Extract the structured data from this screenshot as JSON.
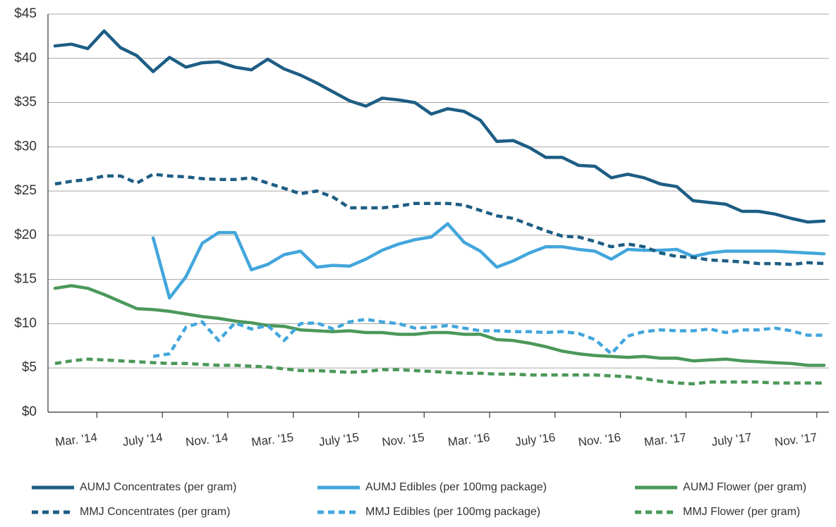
{
  "chart_data": {
    "type": "line",
    "categories": [
      null,
      null,
      "Mar. '14",
      null,
      null,
      null,
      "July '14",
      null,
      null,
      null,
      "Nov. '14",
      null,
      null,
      null,
      "Mar. '15",
      null,
      null,
      null,
      "July '15",
      null,
      null,
      null,
      "Nov. '15",
      null,
      null,
      null,
      "Mar. '16",
      null,
      null,
      null,
      "July '16",
      null,
      null,
      null,
      "Nov. '16",
      null,
      null,
      null,
      "Mar. '17",
      null,
      null,
      null,
      "July '17",
      null,
      null,
      null,
      "Nov. '17",
      null
    ],
    "ylim": [
      0,
      45
    ],
    "yticks": [
      {
        "value": 0,
        "label": "$0"
      },
      {
        "value": 5,
        "label": "$5"
      },
      {
        "value": 10,
        "label": "$10"
      },
      {
        "value": 15,
        "label": "$15"
      },
      {
        "value": 20,
        "label": "$20"
      },
      {
        "value": 25,
        "label": "$25"
      },
      {
        "value": 30,
        "label": "$30"
      },
      {
        "value": 35,
        "label": "$35"
      },
      {
        "value": 40,
        "label": "$40"
      },
      {
        "value": 45,
        "label": "$45"
      }
    ],
    "grid": true,
    "legend": "bottom",
    "series": [
      {
        "name": "AUMJ Concentrates (per gram)",
        "color": "#1d5d84",
        "style": "solid",
        "values": [
          41.4,
          41.6,
          41.1,
          43.1,
          41.2,
          40.3,
          38.5,
          40.1,
          39.0,
          39.5,
          39.6,
          39.0,
          38.7,
          39.9,
          38.8,
          38.1,
          37.2,
          36.2,
          35.2,
          34.6,
          35.5,
          35.3,
          35.0,
          33.7,
          34.3,
          34.0,
          33.0,
          30.6,
          30.7,
          29.9,
          28.8,
          28.8,
          27.9,
          27.8,
          26.5,
          26.9,
          26.5,
          25.8,
          25.5,
          23.9,
          23.7,
          23.5,
          22.7,
          22.7,
          22.4,
          21.9,
          21.5,
          21.6
        ]
      },
      {
        "name": "AUMJ Edibles (per 100mg package)",
        "color": "#42a6dc",
        "style": "solid",
        "values": [
          null,
          null,
          null,
          null,
          null,
          null,
          19.7,
          12.9,
          15.3,
          19.1,
          20.3,
          20.3,
          16.1,
          16.7,
          17.8,
          18.2,
          16.4,
          16.6,
          16.5,
          17.3,
          18.3,
          19.0,
          19.5,
          19.8,
          21.3,
          19.2,
          18.2,
          16.4,
          17.1,
          18.0,
          18.7,
          18.7,
          18.4,
          18.2,
          17.3,
          18.4,
          18.3,
          18.3,
          18.4,
          17.6,
          18.0,
          18.2,
          18.2,
          18.2,
          18.2,
          18.1,
          18.0,
          17.9
        ]
      },
      {
        "name": "AUMJ Flower (per gram)",
        "color": "#4b985a",
        "style": "solid",
        "values": [
          14.0,
          14.3,
          14.0,
          13.3,
          12.5,
          11.7,
          11.6,
          11.4,
          11.1,
          10.8,
          10.6,
          10.3,
          10.1,
          9.8,
          9.7,
          9.3,
          9.2,
          9.1,
          9.2,
          9.0,
          9.0,
          8.8,
          8.8,
          9.0,
          9.0,
          8.8,
          8.8,
          8.2,
          8.1,
          7.8,
          7.4,
          6.9,
          6.6,
          6.4,
          6.3,
          6.2,
          6.3,
          6.1,
          6.1,
          5.8,
          5.9,
          6.0,
          5.8,
          5.7,
          5.6,
          5.5,
          5.3,
          5.3
        ]
      },
      {
        "name": "MMJ Concentrates (per gram)",
        "color": "#1d5d84",
        "style": "dashed",
        "values": [
          25.8,
          26.1,
          26.3,
          26.7,
          26.7,
          25.9,
          26.9,
          26.7,
          26.6,
          26.4,
          26.3,
          26.3,
          26.5,
          25.9,
          25.3,
          24.7,
          25.0,
          24.3,
          23.1,
          23.1,
          23.1,
          23.3,
          23.6,
          23.6,
          23.6,
          23.4,
          22.8,
          22.2,
          21.9,
          21.2,
          20.5,
          19.9,
          19.8,
          19.3,
          18.7,
          19.0,
          18.7,
          18.0,
          17.6,
          17.5,
          17.2,
          17.1,
          17.0,
          16.8,
          16.8,
          16.7,
          16.9,
          16.8
        ]
      },
      {
        "name": "MMJ Edibles (per 100mg package)",
        "color": "#42a6dc",
        "style": "dashed",
        "values": [
          null,
          null,
          null,
          null,
          null,
          null,
          6.3,
          6.6,
          9.6,
          10.2,
          8.1,
          10.1,
          9.4,
          9.8,
          8.1,
          10.0,
          10.1,
          9.4,
          10.2,
          10.5,
          10.2,
          10.0,
          9.5,
          9.6,
          9.8,
          9.5,
          9.2,
          9.2,
          9.1,
          9.1,
          9.0,
          9.1,
          8.9,
          8.2,
          6.6,
          8.6,
          9.1,
          9.3,
          9.2,
          9.2,
          9.4,
          9.0,
          9.3,
          9.3,
          9.5,
          9.2,
          8.7,
          8.7
        ]
      },
      {
        "name": "MMJ Flower (per gram)",
        "color": "#4b985a",
        "style": "dashed",
        "values": [
          5.5,
          5.8,
          6.0,
          5.9,
          5.8,
          5.7,
          5.6,
          5.5,
          5.5,
          5.4,
          5.3,
          5.3,
          5.2,
          5.1,
          4.9,
          4.7,
          4.7,
          4.6,
          4.5,
          4.6,
          4.8,
          4.8,
          4.7,
          4.6,
          4.5,
          4.4,
          4.4,
          4.3,
          4.3,
          4.2,
          4.2,
          4.2,
          4.2,
          4.2,
          4.1,
          4.0,
          3.8,
          3.5,
          3.3,
          3.2,
          3.4,
          3.4,
          3.4,
          3.4,
          3.3,
          3.3,
          3.3,
          3.3
        ]
      }
    ]
  }
}
